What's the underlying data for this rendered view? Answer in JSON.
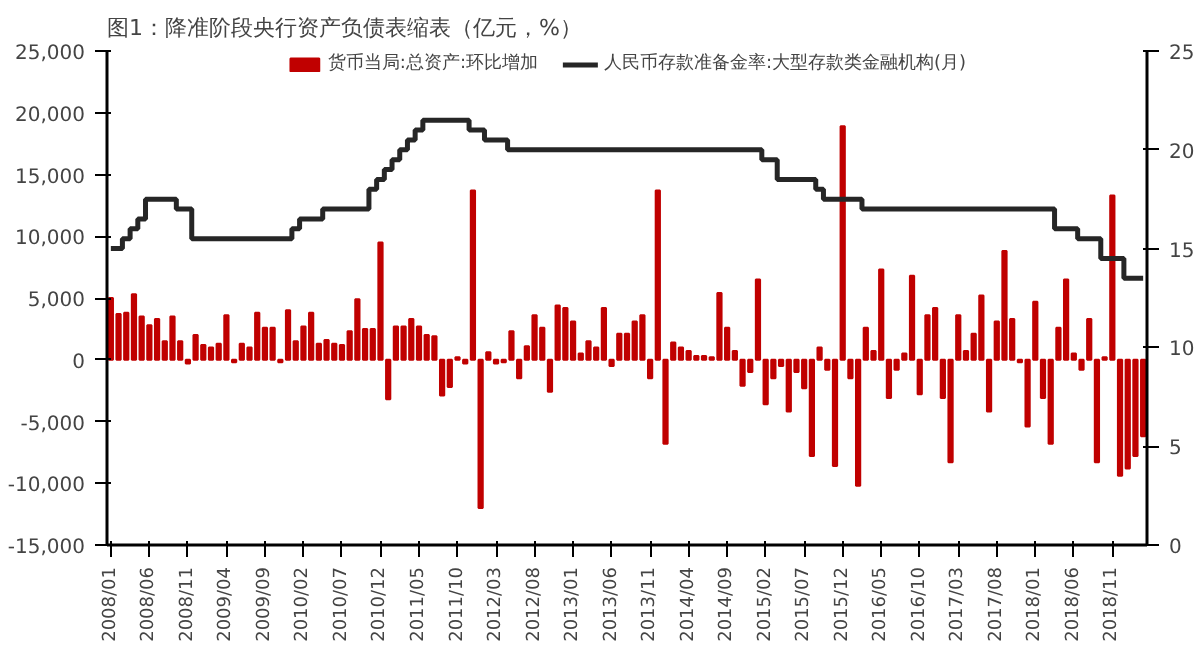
{
  "chart_data": {
    "type": "bar",
    "title": "图1：降准阶段央行资产负债表缩表（亿元，%）",
    "categories": [
      "2008/01",
      null,
      null,
      null,
      null,
      "2008/06",
      null,
      null,
      null,
      null,
      "2008/11",
      null,
      null,
      null,
      null,
      "2009/04",
      null,
      null,
      null,
      null,
      "2009/09",
      null,
      null,
      null,
      null,
      "2010/02",
      null,
      null,
      null,
      null,
      "2010/07",
      null,
      null,
      null,
      null,
      "2010/12",
      null,
      null,
      null,
      null,
      "2011/05",
      null,
      null,
      null,
      null,
      "2011/10",
      null,
      null,
      null,
      null,
      "2012/03",
      null,
      null,
      null,
      null,
      "2012/08",
      null,
      null,
      null,
      null,
      "2013/01",
      null,
      null,
      null,
      null,
      "2013/06",
      null,
      null,
      null,
      null,
      "2013/11",
      null,
      null,
      null,
      null,
      "2014/04",
      null,
      null,
      null,
      null,
      "2014/09",
      null,
      null,
      null,
      null,
      "2015/02",
      null,
      null,
      null,
      null,
      "2015/07",
      null,
      null,
      null,
      null,
      "2015/12",
      null,
      null,
      null,
      null,
      "2016/05",
      null,
      null,
      null,
      null,
      "2016/10",
      null,
      null,
      null,
      null,
      "2017/03",
      null,
      null,
      null,
      null,
      "2017/08",
      null,
      null,
      null,
      null,
      "2018/01",
      null,
      null,
      null,
      null,
      "2018/06",
      null,
      null,
      null,
      null,
      "2018/11",
      null,
      null,
      null,
      null
    ],
    "series": [
      {
        "name": "货币当局:总资产:环比增加",
        "color": "#c00000",
        "values": [
          5000,
          3700,
          3800,
          5300,
          3500,
          2800,
          3300,
          1500,
          3500,
          1500,
          -300,
          2000,
          1200,
          1000,
          1300,
          3600,
          -200,
          1300,
          1000,
          3800,
          2600,
          2600,
          -200,
          4000,
          1500,
          2700,
          3800,
          1300,
          1600,
          1300,
          1200,
          2300,
          4900,
          2500,
          2500,
          9500,
          -3200,
          2700,
          2700,
          3300,
          2700,
          2000,
          1900,
          -2900,
          -2200,
          200,
          -300,
          13700,
          -12000,
          600,
          -300,
          -200,
          2300,
          -1500,
          1100,
          3600,
          2600,
          -2600,
          4400,
          4200,
          3100,
          500,
          1500,
          1000,
          4200,
          -500,
          2100,
          2100,
          3100,
          3600,
          -1500,
          13700,
          -6800,
          1400,
          1000,
          700,
          300,
          300,
          200,
          5400,
          2600,
          700,
          -2100,
          -1000,
          6500,
          -3600,
          -1500,
          -500,
          -4200,
          -1000,
          -2300,
          -7800,
          1000,
          -800,
          -8600,
          18900,
          -1500,
          -10200,
          2600,
          700,
          7300,
          -3100,
          -800,
          500,
          6800,
          -2800,
          3600,
          4200,
          -3100,
          -8300,
          3600,
          700,
          2100,
          5200,
          -4200,
          3100,
          8800,
          3300,
          -200,
          -5400,
          4700,
          -3100,
          -6800,
          2600,
          6500,
          500,
          -800,
          3300,
          -8300,
          200,
          13300,
          -9400,
          -8800,
          -7800,
          -6200
        ]
      },
      {
        "name": "人民币存款准备金率:大型存款类金融机构(月)",
        "type": "step",
        "axis": "y2",
        "color": "#262626",
        "values": [
          15,
          15,
          15.5,
          16,
          16.5,
          17.5,
          17.5,
          17.5,
          17.5,
          17,
          17,
          15.5,
          15.5,
          15.5,
          15.5,
          15.5,
          15.5,
          15.5,
          15.5,
          15.5,
          15.5,
          15.5,
          15.5,
          15.5,
          16,
          16.5,
          16.5,
          16.5,
          17,
          17,
          17,
          17,
          17,
          17,
          18,
          18.5,
          19,
          19.5,
          20,
          20.5,
          21,
          21.5,
          21.5,
          21.5,
          21.5,
          21.5,
          21.5,
          21,
          21,
          20.5,
          20.5,
          20.5,
          20,
          20,
          20,
          20,
          20,
          20,
          20,
          20,
          20,
          20,
          20,
          20,
          20,
          20,
          20,
          20,
          20,
          20,
          20,
          20,
          20,
          20,
          20,
          20,
          20,
          20,
          20,
          20,
          20,
          20,
          20,
          20,
          20,
          19.5,
          19.5,
          18.5,
          18.5,
          18.5,
          18.5,
          18.5,
          18,
          17.5,
          17.5,
          17.5,
          17.5,
          17.5,
          17,
          17,
          17,
          17,
          17,
          17,
          17,
          17,
          17,
          17,
          17,
          17,
          17,
          17,
          17,
          17,
          17,
          17,
          17,
          17,
          17,
          17,
          17,
          17,
          17,
          16,
          16,
          16,
          15.5,
          15.5,
          15.5,
          14.5,
          14.5,
          14.5,
          13.5,
          13.5,
          13.5
        ]
      }
    ],
    "ylim": [
      -15000,
      25000
    ],
    "yticks": [
      {
        "value": -15000,
        "label": "-15,000"
      },
      {
        "value": -10000,
        "label": "-10,000"
      },
      {
        "value": -5000,
        "label": "-5,000"
      },
      0,
      {
        "value": 5000,
        "label": "5,000"
      },
      {
        "value": 10000,
        "label": "10,000"
      },
      {
        "value": 15000,
        "label": "15,000"
      },
      {
        "value": 20000,
        "label": "20,000"
      },
      {
        "value": 25000,
        "label": "25,000"
      }
    ],
    "y2lim": [
      0,
      25
    ],
    "y2ticks": [
      0,
      5,
      10,
      15,
      20,
      25
    ],
    "grid": false,
    "legend": "top"
  }
}
